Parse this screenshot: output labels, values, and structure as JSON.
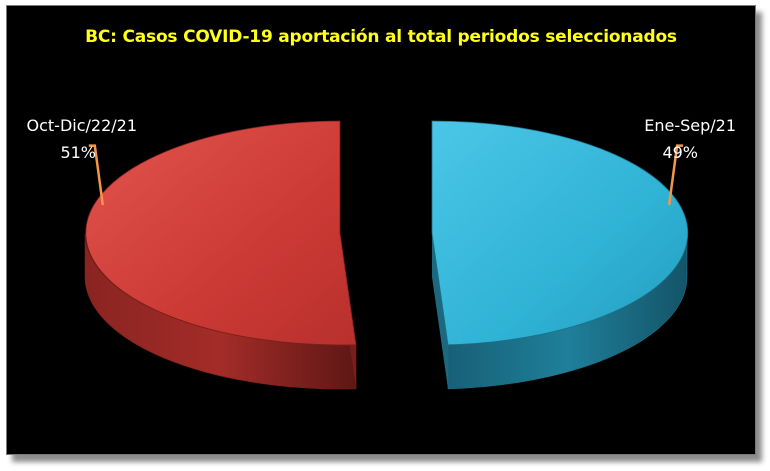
{
  "chart_data": {
    "type": "pie",
    "title": "BC: Casos COVID-19 aportación al total periodos seleccionados",
    "style": "3d-exploded",
    "slices": [
      {
        "label": "Ene-Sep/21",
        "value": 49,
        "value_label": "49%",
        "color": "#31b8dc",
        "side_color": "#1e6f86"
      },
      {
        "label": "Oct-Dic/22/21",
        "value": 51,
        "value_label": "51%",
        "color": "#d13d38",
        "side_color": "#7a1f1c"
      }
    ],
    "leader_color": "#f79646",
    "background": "#000000"
  }
}
